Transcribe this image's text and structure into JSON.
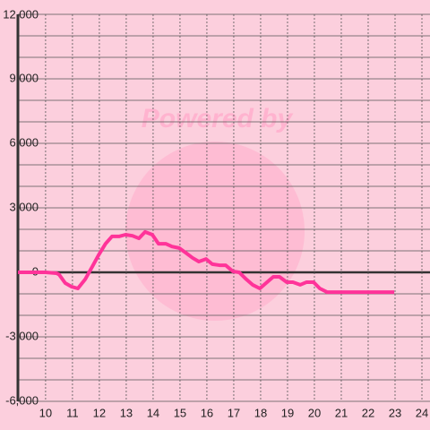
{
  "chart_data": {
    "type": "line",
    "watermark": "Powered by",
    "x": [
      8.97,
      10,
      10.4,
      10.5,
      10.73,
      10.97,
      11.2,
      11.47,
      11.73,
      11.97,
      12.23,
      12.47,
      12.73,
      12.97,
      13.23,
      13.47,
      13.7,
      13.97,
      14.2,
      14.47,
      14.7,
      14.97,
      15.2,
      15.47,
      15.7,
      15.97,
      16.2,
      16.47,
      16.7,
      16.97,
      17.2,
      17.47,
      17.7,
      17.97,
      18.2,
      18.47,
      18.7,
      18.97,
      19.2,
      19.47,
      19.7,
      19.97,
      20.2,
      20.47,
      22.97
    ],
    "series": [
      {
        "color": "#ff3399",
        "values": [
          0,
          0,
          -40,
          -100,
          -500,
          -670,
          -750,
          -330,
          250,
          800,
          1330,
          1670,
          1670,
          1750,
          1700,
          1580,
          1880,
          1750,
          1330,
          1330,
          1200,
          1130,
          920,
          670,
          500,
          620,
          380,
          330,
          330,
          40,
          0,
          -330,
          -580,
          -750,
          -500,
          -210,
          -210,
          -460,
          -460,
          -580,
          -460,
          -460,
          -750,
          -920,
          -920
        ]
      }
    ],
    "xlim": [
      8.97,
      24.3
    ],
    "xticks": [
      10,
      11,
      12,
      13,
      14,
      15,
      16,
      17,
      18,
      19,
      20,
      21,
      22,
      23,
      24
    ],
    "ylim": [
      -6000,
      12000
    ],
    "yticks": [
      {
        "value": -6000,
        "label": "-6,000"
      },
      {
        "value": -3000,
        "label": "-3,000"
      },
      0,
      {
        "value": 3000,
        "label": "3,000"
      },
      {
        "value": 6000,
        "label": "6,000"
      },
      {
        "value": 9000,
        "label": "9,000"
      },
      {
        "value": 12000,
        "label": "12,000"
      }
    ],
    "minor_yticks": [
      -5000,
      -4000,
      -2000,
      -1000,
      1000,
      2000,
      4000,
      5000,
      7000,
      8000,
      10000,
      11000
    ],
    "grid": true
  }
}
